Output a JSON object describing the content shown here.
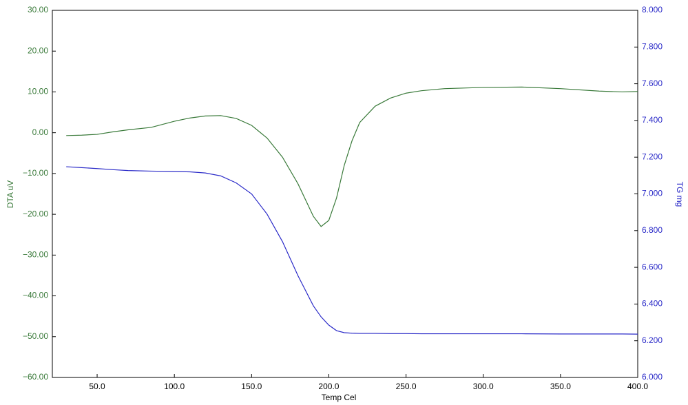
{
  "chart_data": {
    "type": "line",
    "xlabel": "Temp Cel",
    "ylabel": "DTA uV",
    "y2label": "TG mg",
    "x": [
      30,
      40,
      50,
      60,
      70,
      85,
      100,
      110,
      120,
      130,
      140,
      150,
      160,
      170,
      180,
      190,
      195,
      200,
      205,
      210,
      215,
      220,
      230,
      240,
      250,
      260,
      275,
      300,
      325,
      350,
      375,
      390,
      400
    ],
    "series": [
      {
        "name": "DTA",
        "color": "#3a7a3a",
        "axis": "y",
        "values": [
          -0.7,
          -0.6,
          -0.4,
          0.2,
          0.7,
          1.3,
          2.8,
          3.6,
          4.1,
          4.2,
          3.5,
          1.8,
          -1.3,
          -6,
          -12.5,
          -20.5,
          -23,
          -21.5,
          -16,
          -8,
          -2,
          2.5,
          6.5,
          8.5,
          9.7,
          10.3,
          10.8,
          11.1,
          11.2,
          10.8,
          10.2,
          10.0,
          10.1
        ]
      },
      {
        "name": "TG",
        "color": "#2a2ac8",
        "axis": "y2",
        "values": [
          7.148,
          7.143,
          7.138,
          7.132,
          7.127,
          7.124,
          7.122,
          7.12,
          7.114,
          7.098,
          7.06,
          7.0,
          6.89,
          6.74,
          6.555,
          6.39,
          6.33,
          6.285,
          6.255,
          6.244,
          6.241,
          6.24,
          6.24,
          6.239,
          6.239,
          6.238,
          6.238,
          6.238,
          6.238,
          6.237,
          6.237,
          6.237,
          6.236
        ]
      }
    ],
    "xlim": [
      21,
      400
    ],
    "xticks": [
      {
        "value": 50,
        "label": "50.0"
      },
      {
        "value": 100,
        "label": "100.0"
      },
      {
        "value": 150,
        "label": "150.0"
      },
      {
        "value": 200,
        "label": "200.0"
      },
      {
        "value": 250,
        "label": "250.0"
      },
      {
        "value": 300,
        "label": "300.0"
      },
      {
        "value": 350,
        "label": "350.0"
      },
      {
        "value": 400,
        "label": "400.0"
      }
    ],
    "ylim": [
      -60,
      30
    ],
    "yticks": [
      {
        "value": 30,
        "label": "30.00"
      },
      {
        "value": 20,
        "label": "20.00"
      },
      {
        "value": 10,
        "label": "10.00"
      },
      {
        "value": 0,
        "label": "0.00"
      },
      {
        "value": -10,
        "label": "−10.00"
      },
      {
        "value": -20,
        "label": "−20.00"
      },
      {
        "value": -30,
        "label": "−30.00"
      },
      {
        "value": -40,
        "label": "−40.00"
      },
      {
        "value": -50,
        "label": "−50.00"
      },
      {
        "value": -60,
        "label": "−60.00"
      }
    ],
    "y2lim": [
      6,
      8
    ],
    "y2ticks": [
      {
        "value": 8,
        "label": "8.000"
      },
      {
        "value": 7.8,
        "label": "7.800"
      },
      {
        "value": 7.6,
        "label": "7.600"
      },
      {
        "value": 7.4,
        "label": "7.400"
      },
      {
        "value": 7.2,
        "label": "7.200"
      },
      {
        "value": 7,
        "label": "7.000"
      },
      {
        "value": 6.8,
        "label": "6.800"
      },
      {
        "value": 6.6,
        "label": "6.600"
      },
      {
        "value": 6.4,
        "label": "6.400"
      },
      {
        "value": 6.2,
        "label": "6.200"
      },
      {
        "value": 6,
        "label": "6.000"
      }
    ],
    "yaxis_color": "#3a7a3a",
    "y2axis_color": "#2a2ac8"
  }
}
